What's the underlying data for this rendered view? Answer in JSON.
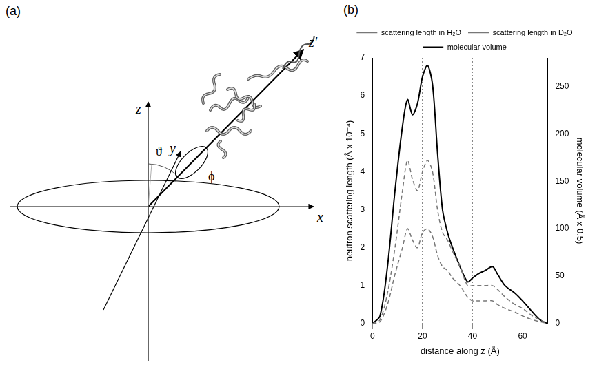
{
  "diagram": {
    "letter": "(a)",
    "axis_labels": {
      "z": "z",
      "y": "y",
      "x": "x",
      "z_prime": "z'"
    },
    "angle_labels": {
      "polar": "ϑ",
      "azimuth": "ϕ"
    }
  },
  "chart_letter": "(b)",
  "chart_data": {
    "type": "line",
    "x_label": "distance along z (Å)",
    "y_label": "neutron scattering length (Å x 10⁻⁴)",
    "y2_label": "molecular volume (Å x 0.5)",
    "x": [
      0,
      3,
      6,
      9,
      12,
      14,
      16,
      18,
      20,
      22,
      24,
      26,
      28,
      30,
      32,
      35,
      38,
      40,
      42,
      45,
      48,
      50,
      53,
      57,
      60,
      64,
      67,
      70
    ],
    "series": [
      {
        "name": "scattering length in H₂O",
        "color": "#777777",
        "line_style": "dashed",
        "values": [
          0,
          0.05,
          0.5,
          1.3,
          2.0,
          2.5,
          2.2,
          2.0,
          2.4,
          2.5,
          2.3,
          1.8,
          1.5,
          1.4,
          1.2,
          1.0,
          0.7,
          0.6,
          0.6,
          0.6,
          0.6,
          0.5,
          0.4,
          0.3,
          0.2,
          0.1,
          0.05,
          0
        ]
      },
      {
        "name": "scattering length in D₂O",
        "color": "#777777",
        "line_style": "dashed",
        "values": [
          0,
          0.1,
          0.8,
          2.0,
          3.5,
          4.3,
          3.8,
          3.5,
          4.0,
          4.3,
          4.0,
          3.0,
          2.4,
          2.2,
          1.9,
          1.5,
          1.0,
          1.0,
          1.0,
          1.0,
          1.0,
          0.9,
          0.7,
          0.5,
          0.4,
          0.2,
          0.1,
          0
        ]
      },
      {
        "name": "molecular volume",
        "color": "#000000",
        "line_style": "solid",
        "axis": "y2",
        "values": [
          0,
          8,
          60,
          140,
          208,
          236,
          220,
          232,
          260,
          272,
          252,
          180,
          120,
          96,
          80,
          60,
          44,
          48,
          52,
          56,
          60,
          52,
          40,
          32,
          24,
          12,
          4,
          0
        ]
      }
    ],
    "xlim": [
      0,
      70
    ],
    "xticks": [
      0,
      20,
      40,
      60
    ],
    "ylim": [
      0,
      7
    ],
    "yticks": [
      0,
      1,
      2,
      3,
      4,
      5,
      6,
      7
    ],
    "y2lim": [
      0,
      280
    ],
    "y2ticks": [
      0,
      50,
      100,
      150,
      200,
      250
    ],
    "grid": true,
    "legend": "top"
  }
}
